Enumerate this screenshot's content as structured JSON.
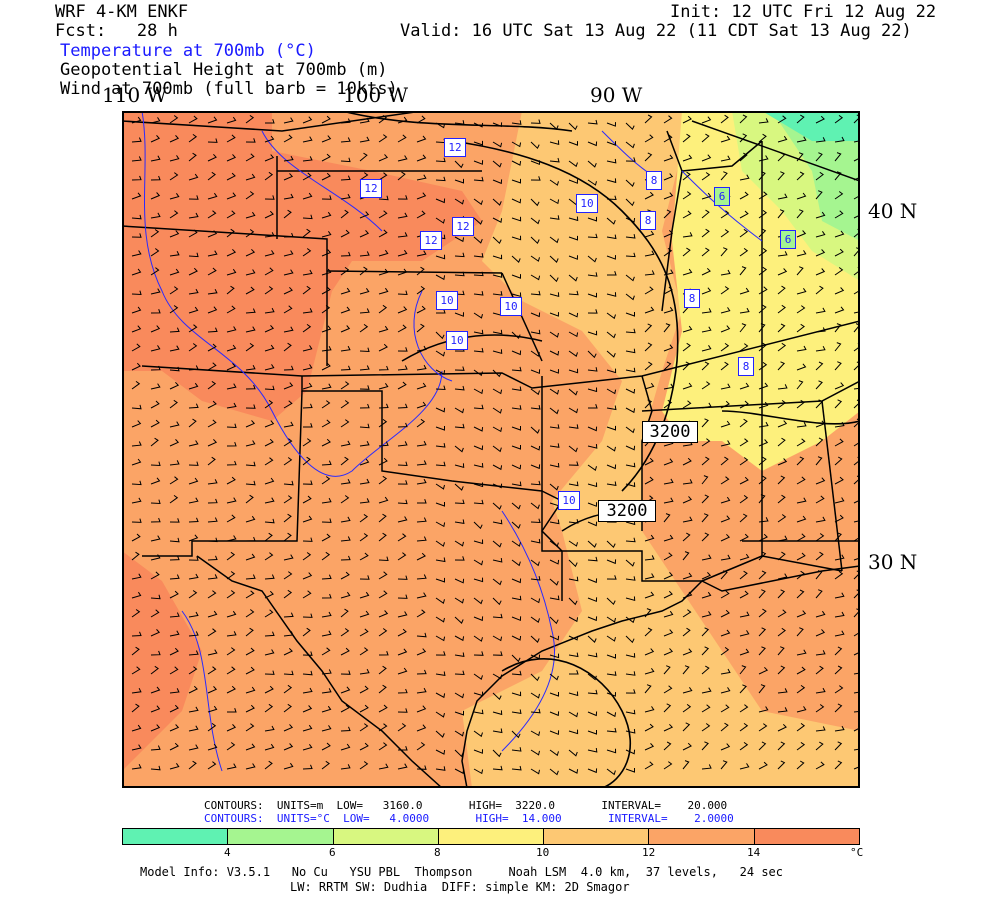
{
  "header": {
    "model": "WRF 4-KM ENKF",
    "fcst": "Fcst:   28 h",
    "init": "Init: 12 UTC Fri 12 Aug 22",
    "valid": "Valid: 16 UTC Sat 13 Aug 22 (11 CDT Sat 13 Aug 22)",
    "field1": "Temperature at 700mb (°C)",
    "field2": "Geopotential Height at 700mb (m)",
    "field3": "Wind at 700mb (full barb = 10kts)"
  },
  "map": {
    "lon_labels": [
      "110 W",
      "100 W",
      "90 W"
    ],
    "lat_labels": [
      "40 N",
      "30 N"
    ],
    "temp_contour_labels": [
      "12",
      "12",
      "12",
      "12",
      "10",
      "10",
      "10",
      "10",
      "8",
      "8",
      "8",
      "8",
      "6",
      "6",
      "10"
    ],
    "height_contour_labels": [
      "3200",
      "3200"
    ]
  },
  "contour_info": {
    "line1": "CONTOURS:  UNITS=m  LOW=   3160.0       HIGH=  3220.0       INTERVAL=    20.000",
    "line2": "CONTOURS:  UNITS=°C  LOW=   4.0000       HIGH=  14.000       INTERVAL=    2.0000"
  },
  "colorbar": {
    "colors": [
      "#5ff2b2",
      "#a5f590",
      "#d8f780",
      "#fdf07c",
      "#fdc873",
      "#fba466",
      "#f98a5c"
    ],
    "tick_labels": [
      "4",
      "6",
      "8",
      "10",
      "12",
      "14"
    ],
    "unit": "°C"
  },
  "footer": {
    "line1": "Model Info: V3.5.1   No Cu   YSU PBL  Thompson     Noah LSM  4.0 km,  37 levels,   24 sec",
    "line2": "LW: RRTM SW: Dudhia  DIFF: simple KM: 2D Smagor"
  }
}
